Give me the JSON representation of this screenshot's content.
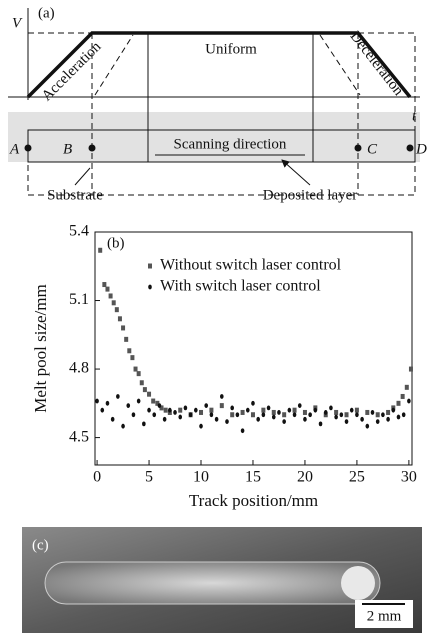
{
  "diagram": {
    "panel": "(a)",
    "v_axis": "V",
    "t_axis": "t",
    "phases": [
      "Acceleration",
      "Uniform",
      "Deceleration"
    ],
    "points": [
      "A",
      "B",
      "C",
      "D"
    ],
    "scan": "Scanning direction",
    "substrate": "Substrate",
    "layer": "Deposited layer"
  },
  "chart_data": {
    "type": "scatter",
    "panel_label": "(b)",
    "x_label": "Track position/mm",
    "y_label": "Melt pool size/mm",
    "xlim": [
      -0.2,
      30.3
    ],
    "ylim": [
      4.38,
      5.4
    ],
    "xticks": [
      0,
      5,
      10,
      15,
      20,
      25,
      30
    ],
    "yticks": [
      4.5,
      4.8,
      5.1,
      5.4
    ],
    "legend": "upper left",
    "series": [
      {
        "name": "Without switch laser control",
        "color": "#555555",
        "marker": "square",
        "x": [
          0.3,
          0.7,
          1.0,
          1.3,
          1.6,
          1.9,
          2.2,
          2.5,
          2.8,
          3.1,
          3.4,
          3.7,
          4.0,
          4.3,
          4.6,
          5.0,
          5.4,
          5.8,
          6.2,
          6.6,
          7,
          8,
          9,
          10,
          11,
          12,
          13,
          14,
          15,
          16,
          17,
          18,
          19,
          20,
          21,
          22,
          23,
          24,
          25,
          26,
          27,
          28,
          28.5,
          29,
          29.4,
          29.8,
          30.2
        ],
        "values": [
          5.32,
          5.17,
          5.15,
          5.12,
          5.09,
          5.06,
          5.02,
          4.98,
          4.93,
          4.88,
          4.85,
          4.8,
          4.78,
          4.74,
          4.71,
          4.69,
          4.66,
          4.65,
          4.63,
          4.62,
          4.61,
          4.62,
          4.6,
          4.61,
          4.62,
          4.64,
          4.6,
          4.61,
          4.6,
          4.62,
          4.61,
          4.6,
          4.62,
          4.61,
          4.63,
          4.6,
          4.61,
          4.6,
          4.62,
          4.61,
          4.6,
          4.61,
          4.63,
          4.65,
          4.68,
          4.72,
          4.8
        ]
      },
      {
        "name": "With switch laser control",
        "color": "#111111",
        "marker": "dot",
        "x": [
          0,
          0.5,
          1,
          1.5,
          2,
          2.5,
          3,
          3.5,
          4,
          4.5,
          5,
          5.5,
          6,
          6.5,
          7,
          7.5,
          8,
          8.5,
          9,
          9.5,
          10,
          10.5,
          11,
          11.5,
          12,
          12.5,
          13,
          13.5,
          14,
          14.5,
          15,
          15.5,
          16,
          16.5,
          17,
          17.5,
          18,
          18.5,
          19,
          19.5,
          20,
          20.5,
          21,
          21.5,
          22,
          22.5,
          23,
          23.5,
          24,
          24.5,
          25,
          25.5,
          26,
          26.5,
          27,
          27.5,
          28,
          28.5,
          29,
          29.5,
          30
        ],
        "values": [
          4.66,
          4.62,
          4.65,
          4.58,
          4.68,
          4.55,
          4.64,
          4.6,
          4.66,
          4.56,
          4.62,
          4.6,
          4.64,
          4.58,
          4.62,
          4.61,
          4.59,
          4.63,
          4.6,
          4.62,
          4.55,
          4.64,
          4.6,
          4.58,
          4.68,
          4.57,
          4.63,
          4.6,
          4.53,
          4.62,
          4.65,
          4.58,
          4.6,
          4.63,
          4.59,
          4.61,
          4.57,
          4.62,
          4.6,
          4.64,
          4.58,
          4.6,
          4.62,
          4.56,
          4.61,
          4.63,
          4.59,
          4.6,
          4.57,
          4.62,
          4.6,
          4.58,
          4.55,
          4.61,
          4.57,
          4.6,
          4.58,
          4.62,
          4.59,
          4.6,
          4.66
        ]
      }
    ]
  },
  "photo": {
    "panel": "(c)",
    "scale_bar": "2 mm"
  }
}
